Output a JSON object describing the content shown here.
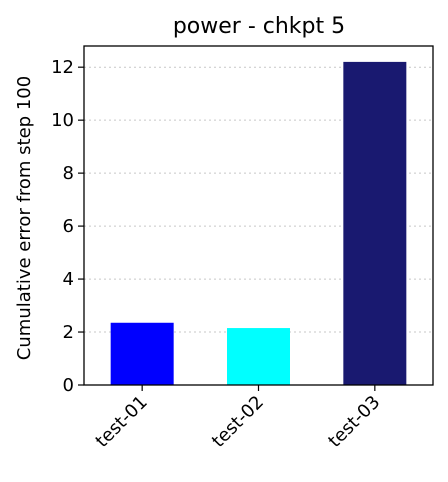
{
  "chart_data": {
    "type": "bar",
    "title": "power - chkpt 5",
    "xlabel": "",
    "ylabel": "Cumulative error from step 100",
    "categories": [
      "test-01",
      "test-02",
      "test-03"
    ],
    "values": [
      2.35,
      2.15,
      12.2
    ],
    "bar_colors": [
      "#0000ff",
      "#00ffff",
      "#191970"
    ],
    "ylim": [
      0,
      12.8
    ],
    "yticks": [
      0,
      2,
      4,
      6,
      8,
      10,
      12
    ],
    "grid": "horizontal dotted",
    "legend": "none"
  }
}
